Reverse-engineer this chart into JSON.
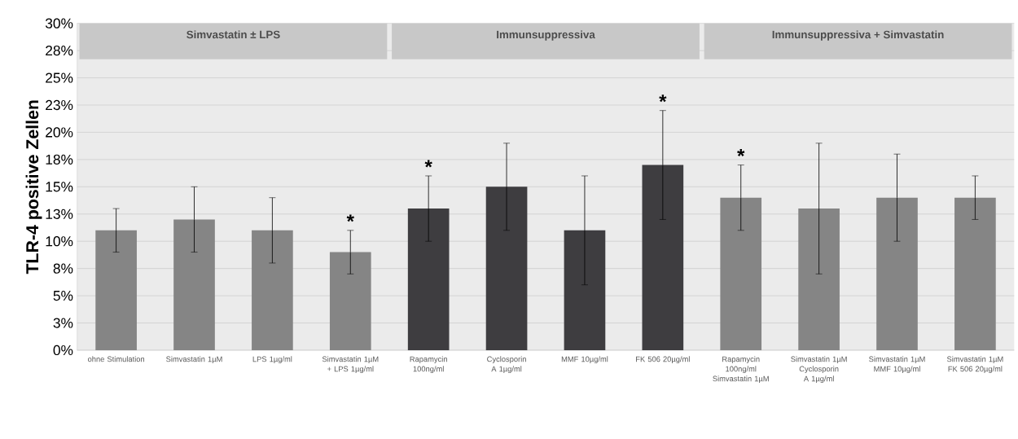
{
  "chart_data": {
    "type": "bar",
    "ylabel": "TLR-4 positive Zellen",
    "categories": [
      "ohne Stimulation",
      "Simvastatin 1µM",
      "LPS 1µg/ml",
      "Simvastatin 1µM + LPS 1µg/ml",
      "Rapamycin 100ng/ml",
      "Cyclosporin A 1µg/ml",
      "MMF 10µg/ml",
      "FK 506 20µg/ml",
      "Rapamycin 100ng/ml Simvastatin 1µM",
      "Simvastatin 1µM Cyclosporin A 1µg/ml",
      "Simvastatin 1µM MMF 10µg/ml",
      "Simvastatin 1µM FK 506 20µg/ml"
    ],
    "values": [
      11,
      12,
      11,
      9,
      13,
      15,
      11,
      17,
      14,
      13,
      14,
      14
    ],
    "errors": [
      2,
      3,
      3,
      2,
      3,
      4,
      5,
      5,
      3,
      6,
      4,
      2
    ],
    "colors": [
      "#858585",
      "#858585",
      "#858585",
      "#858585",
      "#3e3d40",
      "#3e3d40",
      "#3e3d40",
      "#3e3d40",
      "#858585",
      "#858585",
      "#858585",
      "#858585"
    ],
    "ylim": [
      0,
      30
    ],
    "yticks": [
      {
        "value": 0,
        "label": "0%"
      },
      {
        "value": 2.5,
        "label": "3%"
      },
      {
        "value": 5,
        "label": "5%"
      },
      {
        "value": 7.5,
        "label": "8%"
      },
      {
        "value": 10,
        "label": "10%"
      },
      {
        "value": 12.5,
        "label": "13%"
      },
      {
        "value": 15,
        "label": "15%"
      },
      {
        "value": 17.5,
        "label": "18%"
      },
      {
        "value": 20,
        "label": "20%"
      },
      {
        "value": 22.5,
        "label": "23%"
      },
      {
        "value": 25,
        "label": "25%"
      },
      {
        "value": 27.5,
        "label": "28%"
      },
      {
        "value": 30,
        "label": "30%"
      }
    ],
    "grid": "y",
    "bands": [
      {
        "axis": "x",
        "from": "ohne Stimulation",
        "to": "Simvastatin 1µM + LPS 1µg/ml",
        "label": "Simvastatin ± LPS",
        "color": "#c8c8c8"
      },
      {
        "axis": "x",
        "from": "Rapamycin 100ng/ml",
        "to": "FK 506 20µg/ml",
        "label": "Immunsuppressiva",
        "color": "#c8c8c8"
      },
      {
        "axis": "x",
        "from": "Rapamycin 100ng/ml Simvastatin 1µM",
        "to": "Simvastatin 1µM FK 506 20µg/ml",
        "label": "Immunsuppressiva + Simvastatin",
        "color": "#c8c8c8"
      }
    ],
    "annotations": [
      {
        "text": "*",
        "x": "Simvastatin 1µM + LPS 1µg/ml",
        "y": 11
      },
      {
        "text": "*",
        "x": "Rapamycin 100ng/ml",
        "y": 16
      },
      {
        "text": "*",
        "x": "FK 506 20µg/ml",
        "y": 22
      },
      {
        "text": "*",
        "x": "Rapamycin 100ng/ml Simvastatin 1µM",
        "y": 17
      }
    ]
  }
}
